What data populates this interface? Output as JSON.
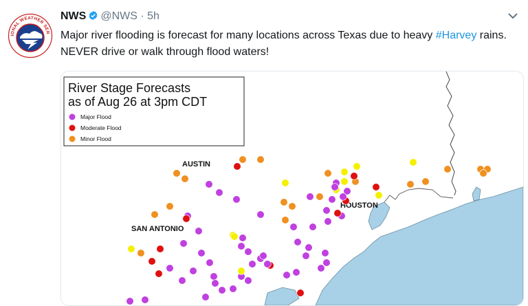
{
  "tweet": {
    "author_name": "NWS",
    "handle": "@NWS",
    "separator": "·",
    "timestamp": "5h",
    "text_before_hashtag": "Major river flooding is forecast for many locations across Texas due to heavy ",
    "hashtag": "#Harvey",
    "text_after_hashtag": " rains. NEVER drive or walk through flood waters!",
    "avatar_icon": "nws-logo-icon",
    "verified_icon": "verified-badge-icon",
    "menu_icon": "chevron-down-icon"
  },
  "logo": {
    "text": "NATIONAL WEATHER SERVICE"
  },
  "map": {
    "title_line1": "River Stage Forecasts",
    "title_line2": "as of Aug 26 at 3pm CDT",
    "legend": [
      {
        "label": "Major Flood",
        "color": "#c040e0"
      },
      {
        "label": "Moderate Flood",
        "color": "#e01010"
      },
      {
        "label": "Minor Flood",
        "color": "#f09020"
      }
    ],
    "action_color": "#f5f000",
    "water_color": "#a8d0e6",
    "cities": [
      "AUSTIN",
      "SAN ANTONIO",
      "HOUSTON"
    ]
  }
}
